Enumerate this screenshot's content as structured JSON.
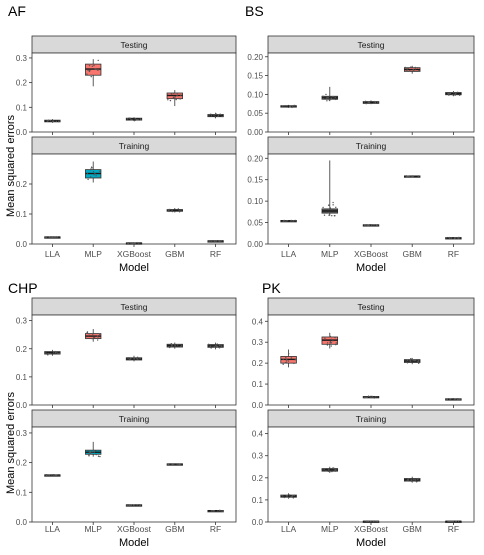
{
  "chart_data": [
    {
      "type": "boxplot",
      "title": "AF",
      "xlabel": "Model",
      "ylabel": "Mean squared errors",
      "categories": [
        "LLA",
        "MLP",
        "XGBoost",
        "GBM",
        "RF"
      ],
      "facets": [
        {
          "label": "Testing",
          "ylim": [
            0,
            0.32
          ],
          "ticks": [
            0.0,
            0.1,
            0.2,
            0.3
          ],
          "boxes": [
            {
              "q1": 0.041,
              "median": 0.044,
              "q3": 0.048,
              "min": 0.037,
              "max": 0.052,
              "fill": "#595959"
            },
            {
              "q1": 0.23,
              "median": 0.255,
              "q3": 0.275,
              "min": 0.185,
              "max": 0.295,
              "fill": "#f8766d"
            },
            {
              "q1": 0.048,
              "median": 0.052,
              "q3": 0.056,
              "min": 0.044,
              "max": 0.06,
              "fill": "#595959"
            },
            {
              "q1": 0.135,
              "median": 0.148,
              "q3": 0.158,
              "min": 0.105,
              "max": 0.17,
              "fill": "#f8766d"
            },
            {
              "q1": 0.062,
              "median": 0.066,
              "q3": 0.071,
              "min": 0.055,
              "max": 0.078,
              "fill": "#595959"
            }
          ]
        },
        {
          "label": "Training",
          "ylim": [
            0,
            0.3
          ],
          "ticks": [
            0.0,
            0.1,
            0.2
          ],
          "boxes": [
            {
              "q1": 0.022,
              "median": 0.023,
              "q3": 0.024,
              "min": 0.021,
              "max": 0.025,
              "fill": "#595959"
            },
            {
              "q1": 0.22,
              "median": 0.235,
              "q3": 0.248,
              "min": 0.205,
              "max": 0.275,
              "fill": "#00a9c2"
            },
            {
              "q1": 0.002,
              "median": 0.003,
              "q3": 0.004,
              "min": 0.001,
              "max": 0.005,
              "fill": "#595959"
            },
            {
              "q1": 0.109,
              "median": 0.112,
              "q3": 0.115,
              "min": 0.105,
              "max": 0.12,
              "fill": "#595959"
            },
            {
              "q1": 0.009,
              "median": 0.01,
              "q3": 0.011,
              "min": 0.008,
              "max": 0.012,
              "fill": "#595959"
            }
          ]
        }
      ]
    },
    {
      "type": "boxplot",
      "title": "BS",
      "xlabel": "Model",
      "ylabel": "",
      "categories": [
        "LLA",
        "MLP",
        "XGBoost",
        "GBM",
        "RF"
      ],
      "facets": [
        {
          "label": "Testing",
          "ylim": [
            0,
            0.21
          ],
          "ticks": [
            0.0,
            0.05,
            0.1,
            0.15,
            0.2
          ],
          "boxes": [
            {
              "q1": 0.066,
              "median": 0.068,
              "q3": 0.07,
              "min": 0.064,
              "max": 0.072,
              "fill": "#595959"
            },
            {
              "q1": 0.087,
              "median": 0.091,
              "q3": 0.095,
              "min": 0.082,
              "max": 0.12,
              "fill": "#595959"
            },
            {
              "q1": 0.076,
              "median": 0.078,
              "q3": 0.081,
              "min": 0.074,
              "max": 0.084,
              "fill": "#595959"
            },
            {
              "q1": 0.161,
              "median": 0.166,
              "q3": 0.171,
              "min": 0.155,
              "max": 0.176,
              "fill": "#f8766d"
            },
            {
              "q1": 0.099,
              "median": 0.102,
              "q3": 0.105,
              "min": 0.095,
              "max": 0.109,
              "fill": "#595959"
            }
          ]
        },
        {
          "label": "Training",
          "ylim": [
            0,
            0.21
          ],
          "ticks": [
            0.0,
            0.05,
            0.1,
            0.15,
            0.2
          ],
          "boxes": [
            {
              "q1": 0.053,
              "median": 0.054,
              "q3": 0.055,
              "min": 0.052,
              "max": 0.056,
              "fill": "#595959"
            },
            {
              "q1": 0.072,
              "median": 0.077,
              "q3": 0.082,
              "min": 0.066,
              "max": 0.195,
              "fill": "#595959"
            },
            {
              "q1": 0.043,
              "median": 0.044,
              "q3": 0.045,
              "min": 0.042,
              "max": 0.046,
              "fill": "#595959"
            },
            {
              "q1": 0.157,
              "median": 0.158,
              "q3": 0.159,
              "min": 0.156,
              "max": 0.16,
              "fill": "#595959"
            },
            {
              "q1": 0.013,
              "median": 0.014,
              "q3": 0.015,
              "min": 0.012,
              "max": 0.016,
              "fill": "#595959"
            }
          ]
        }
      ]
    },
    {
      "type": "boxplot",
      "title": "CHP",
      "xlabel": "Model",
      "ylabel": "Mean squared errors",
      "categories": [
        "LLA",
        "MLP",
        "XGBoost",
        "GBM",
        "RF"
      ],
      "facets": [
        {
          "label": "Testing",
          "ylim": [
            0,
            0.32
          ],
          "ticks": [
            0.0,
            0.1,
            0.2,
            0.3
          ],
          "boxes": [
            {
              "q1": 0.181,
              "median": 0.186,
              "q3": 0.19,
              "min": 0.175,
              "max": 0.196,
              "fill": "#595959"
            },
            {
              "q1": 0.236,
              "median": 0.245,
              "q3": 0.254,
              "min": 0.225,
              "max": 0.27,
              "fill": "#f8766d"
            },
            {
              "q1": 0.16,
              "median": 0.164,
              "q3": 0.168,
              "min": 0.155,
              "max": 0.175,
              "fill": "#595959"
            },
            {
              "q1": 0.206,
              "median": 0.211,
              "q3": 0.216,
              "min": 0.2,
              "max": 0.222,
              "fill": "#595959"
            },
            {
              "q1": 0.205,
              "median": 0.21,
              "q3": 0.215,
              "min": 0.198,
              "max": 0.222,
              "fill": "#595959"
            }
          ]
        },
        {
          "label": "Training",
          "ylim": [
            0,
            0.32
          ],
          "ticks": [
            0.0,
            0.1,
            0.2,
            0.3
          ],
          "boxes": [
            {
              "q1": 0.157,
              "median": 0.158,
              "q3": 0.159,
              "min": 0.156,
              "max": 0.16,
              "fill": "#595959"
            },
            {
              "q1": 0.228,
              "median": 0.235,
              "q3": 0.242,
              "min": 0.22,
              "max": 0.27,
              "fill": "#00a9c2"
            },
            {
              "q1": 0.056,
              "median": 0.057,
              "q3": 0.058,
              "min": 0.055,
              "max": 0.059,
              "fill": "#595959"
            },
            {
              "q1": 0.194,
              "median": 0.195,
              "q3": 0.196,
              "min": 0.193,
              "max": 0.197,
              "fill": "#595959"
            },
            {
              "q1": 0.037,
              "median": 0.038,
              "q3": 0.039,
              "min": 0.036,
              "max": 0.04,
              "fill": "#595959"
            }
          ]
        }
      ]
    },
    {
      "type": "boxplot",
      "title": "PK",
      "xlabel": "Model",
      "ylabel": "",
      "categories": [
        "LLA",
        "MLP",
        "XGBoost",
        "GBM",
        "RF"
      ],
      "facets": [
        {
          "label": "Testing",
          "ylim": [
            0,
            0.43
          ],
          "ticks": [
            0.0,
            0.1,
            0.2,
            0.3,
            0.4
          ],
          "boxes": [
            {
              "q1": 0.2,
              "median": 0.218,
              "q3": 0.232,
              "min": 0.18,
              "max": 0.265,
              "fill": "#f8766d"
            },
            {
              "q1": 0.29,
              "median": 0.31,
              "q3": 0.325,
              "min": 0.27,
              "max": 0.345,
              "fill": "#f8766d"
            },
            {
              "q1": 0.035,
              "median": 0.038,
              "q3": 0.041,
              "min": 0.032,
              "max": 0.045,
              "fill": "#595959"
            },
            {
              "q1": 0.203,
              "median": 0.21,
              "q3": 0.217,
              "min": 0.195,
              "max": 0.225,
              "fill": "#595959"
            },
            {
              "q1": 0.026,
              "median": 0.028,
              "q3": 0.03,
              "min": 0.024,
              "max": 0.032,
              "fill": "#595959"
            }
          ]
        },
        {
          "label": "Training",
          "ylim": [
            0,
            0.43
          ],
          "ticks": [
            0.0,
            0.1,
            0.2,
            0.3,
            0.4
          ],
          "boxes": [
            {
              "q1": 0.112,
              "median": 0.117,
              "q3": 0.122,
              "min": 0.105,
              "max": 0.13,
              "fill": "#595959"
            },
            {
              "q1": 0.23,
              "median": 0.236,
              "q3": 0.242,
              "min": 0.222,
              "max": 0.25,
              "fill": "#595959"
            },
            {
              "q1": 0.002,
              "median": 0.003,
              "q3": 0.004,
              "min": 0.001,
              "max": 0.005,
              "fill": "#595959"
            },
            {
              "q1": 0.185,
              "median": 0.191,
              "q3": 0.197,
              "min": 0.178,
              "max": 0.205,
              "fill": "#595959"
            },
            {
              "q1": 0.002,
              "median": 0.003,
              "q3": 0.004,
              "min": 0.001,
              "max": 0.005,
              "fill": "#595959"
            }
          ]
        }
      ]
    }
  ]
}
